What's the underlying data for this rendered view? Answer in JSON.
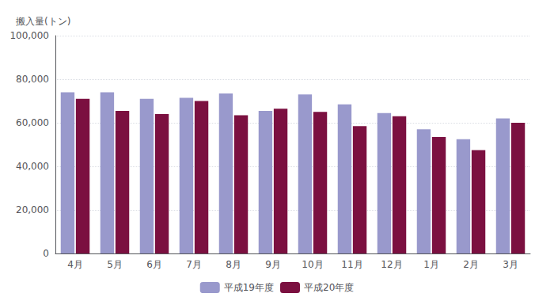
{
  "chart_data": {
    "type": "bar",
    "categories": [
      "4月",
      "5月",
      "6月",
      "7月",
      "8月",
      "9月",
      "10月",
      "11月",
      "12月",
      "1月",
      "2月",
      "3月"
    ],
    "series": [
      {
        "name": "平成19年度",
        "color": "#9999cc",
        "values": [
          74000,
          74000,
          71000,
          71500,
          73500,
          65500,
          73000,
          68500,
          64500,
          57000,
          52500,
          62000
        ]
      },
      {
        "name": "平成20年度",
        "color": "#7b1040",
        "values": [
          71000,
          65500,
          64000,
          70000,
          63500,
          66500,
          65000,
          58500,
          63000,
          53500,
          47500,
          60000
        ]
      }
    ],
    "ylabel": "搬入量(トン)",
    "ylim": [
      0,
      100000
    ],
    "yticks": [
      0,
      {
        "value": 20000,
        "label": "20,000"
      },
      {
        "value": 40000,
        "label": "40,000"
      },
      {
        "value": 60000,
        "label": "60,000"
      },
      {
        "value": 80000,
        "label": "80,000"
      },
      {
        "value": 100000,
        "label": "100,000"
      }
    ],
    "grid": true,
    "legend": "bottom"
  }
}
